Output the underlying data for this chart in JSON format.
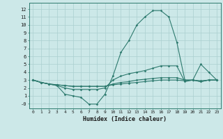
{
  "xlabel": "Humidex (Indice chaleur)",
  "x": [
    0,
    1,
    2,
    3,
    4,
    5,
    6,
    7,
    8,
    9,
    10,
    11,
    12,
    13,
    14,
    15,
    16,
    17,
    18,
    19,
    20,
    21,
    22,
    23
  ],
  "line1": [
    3.0,
    2.7,
    2.5,
    2.3,
    1.2,
    1.0,
    0.8,
    -0.05,
    -0.05,
    1.2,
    3.5,
    6.5,
    8.0,
    10.0,
    11.0,
    11.8,
    11.8,
    11.0,
    7.8,
    3.0,
    3.0,
    5.0,
    4.0,
    3.0
  ],
  "line2": [
    3.0,
    2.7,
    2.5,
    2.3,
    2.0,
    1.8,
    1.8,
    1.8,
    1.8,
    2.0,
    3.0,
    3.5,
    3.8,
    4.0,
    4.2,
    4.5,
    4.8,
    4.8,
    4.8,
    2.8,
    3.0,
    2.8,
    3.0,
    3.0
  ],
  "line3": [
    3.0,
    2.7,
    2.5,
    2.4,
    2.3,
    2.2,
    2.2,
    2.2,
    2.2,
    2.2,
    2.5,
    2.7,
    2.8,
    3.0,
    3.1,
    3.2,
    3.3,
    3.3,
    3.3,
    3.0,
    3.0,
    2.9,
    3.0,
    3.0
  ],
  "line4": [
    3.0,
    2.7,
    2.5,
    2.4,
    2.3,
    2.2,
    2.2,
    2.2,
    2.2,
    2.2,
    2.4,
    2.5,
    2.6,
    2.7,
    2.8,
    2.9,
    3.0,
    3.0,
    3.0,
    2.9,
    3.0,
    2.8,
    3.0,
    3.0
  ],
  "line_color": "#2d7a6e",
  "bg_color": "#cce8e8",
  "grid_color": "#aacfcf",
  "ylim": [
    -0.6,
    12.8
  ],
  "xlim": [
    -0.5,
    23.5
  ],
  "yticks": [
    0,
    1,
    2,
    3,
    4,
    5,
    6,
    7,
    8,
    9,
    10,
    11,
    12
  ],
  "ytick_labels": [
    "-0",
    "1",
    "2",
    "3",
    "4",
    "5",
    "6",
    "7",
    "8",
    "9",
    "10",
    "11",
    "12"
  ],
  "xticks": [
    0,
    1,
    2,
    3,
    4,
    5,
    6,
    7,
    8,
    9,
    10,
    11,
    12,
    13,
    14,
    15,
    16,
    17,
    18,
    19,
    20,
    21,
    22,
    23
  ]
}
